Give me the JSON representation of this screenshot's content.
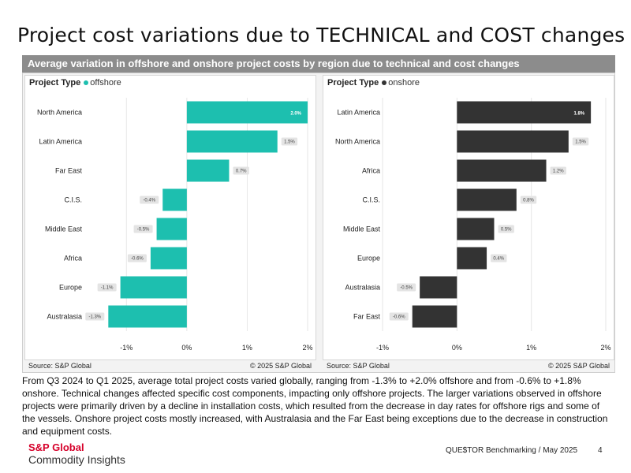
{
  "title": "Project cost variations due to TECHNICAL and COST changes",
  "panel_header": "Average variation in offshore and onshore project costs by region due to technical and cost changes",
  "chart_data": [
    {
      "type": "bar",
      "orientation": "horizontal",
      "legend_title": "Project Type",
      "series_name": "offshore",
      "color": "#1dbfaf",
      "label_text_color": "#ffffff",
      "categories": [
        "North America",
        "Latin America",
        "Far East",
        "C.I.S.",
        "Middle East",
        "Africa",
        "Europe",
        "Australasia"
      ],
      "values": [
        2.0,
        1.5,
        0.7,
        -0.4,
        -0.5,
        -0.6,
        -1.1,
        -1.3
      ],
      "data_labels": [
        "2.0%",
        "1.5%",
        "0.7%",
        "-0.4%",
        "-0.5%",
        "-0.6%",
        "-1.1%",
        "-1.3%"
      ],
      "xlim": [
        -1.5,
        2.0
      ],
      "ticks": [
        -1,
        0,
        1,
        2
      ],
      "tick_labels": [
        "-1%",
        "0%",
        "1%",
        "2%"
      ],
      "grid": true,
      "legend_position": "top-left",
      "source": "Source: S&P Global",
      "copyright": "© 2025 S&P Global"
    },
    {
      "type": "bar",
      "orientation": "horizontal",
      "legend_title": "Project Type",
      "series_name": "onshore",
      "color": "#333333",
      "label_text_color": "#ffffff",
      "categories": [
        "Latin America",
        "North America",
        "Africa",
        "C.I.S.",
        "Middle East",
        "Europe",
        "Australasia",
        "Far East"
      ],
      "values": [
        1.8,
        1.5,
        1.2,
        0.8,
        0.5,
        0.4,
        -0.5,
        -0.6
      ],
      "data_labels": [
        "1.8%",
        "1.5%",
        "1.2%",
        "0.8%",
        "0.5%",
        "0.4%",
        "-0.5%",
        "-0.6%"
      ],
      "xlim": [
        -1.0,
        2.0
      ],
      "ticks": [
        -1,
        0,
        1,
        2
      ],
      "tick_labels": [
        "-1%",
        "0%",
        "1%",
        "2%"
      ],
      "grid": true,
      "legend_position": "top-left",
      "source": "Source: S&P Global",
      "copyright": "© 2025 S&P Global"
    }
  ],
  "body_text": "From Q3 2024 to Q1 2025, average total project costs varied globally, ranging from -1.3% to +2.0% offshore and from -0.6% to +1.8% onshore. Technical changes affected specific cost components, impacting only offshore projects. The larger variations observed in offshore projects were primarily driven by a decline in installation costs, which resulted from the decrease in day rates for offshore rigs and some of the vessels. Onshore project costs mostly increased, with Australasia and the Far East being exceptions due to the decrease in construction and equipment costs.",
  "logo": {
    "name": "S&P Global",
    "subtitle": "Commodity Insights"
  },
  "footer": {
    "reference": "QUE$TOR Benchmarking / May 2025",
    "page_number": "4"
  }
}
